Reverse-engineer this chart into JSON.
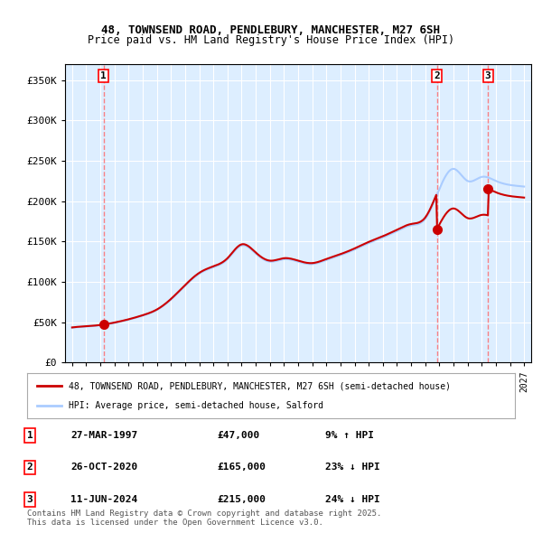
{
  "title_line1": "48, TOWNSEND ROAD, PENDLEBURY, MANCHESTER, M27 6SH",
  "title_line2": "Price paid vs. HM Land Registry's House Price Index (HPI)",
  "xlim": [
    1994.5,
    2027.5
  ],
  "ylim": [
    0,
    370000
  ],
  "yticks": [
    0,
    50000,
    100000,
    150000,
    200000,
    250000,
    300000,
    350000
  ],
  "ytick_labels": [
    "£0",
    "£50K",
    "£100K",
    "£150K",
    "£200K",
    "£250K",
    "£300K",
    "£350K"
  ],
  "background_color": "#ffffff",
  "plot_bg_color": "#ddeeff",
  "grid_color": "#ffffff",
  "hpi_color": "#aaccff",
  "price_color": "#cc0000",
  "sale_marker_color": "#cc0000",
  "dashed_line_color": "#ff6666",
  "legend_label_price": "48, TOWNSEND ROAD, PENDLEBURY, MANCHESTER, M27 6SH (semi-detached house)",
  "legend_label_hpi": "HPI: Average price, semi-detached house, Salford",
  "sale_points": [
    {
      "num": 1,
      "year": 1997.23,
      "price": 47000
    },
    {
      "num": 2,
      "year": 2020.82,
      "price": 165000
    },
    {
      "num": 3,
      "year": 2024.44,
      "price": 215000
    }
  ],
  "copyright_text": "Contains HM Land Registry data © Crown copyright and database right 2025.\nThis data is licensed under the Open Government Licence v3.0.",
  "table_rows": [
    {
      "num": 1,
      "date": "27-MAR-1997",
      "price": "£47,000",
      "hpi": "9% ↑ HPI"
    },
    {
      "num": 2,
      "date": "26-OCT-2020",
      "price": "£165,000",
      "hpi": "23% ↓ HPI"
    },
    {
      "num": 3,
      "date": "11-JUN-2024",
      "price": "£215,000",
      "hpi": "24% ↓ HPI"
    }
  ]
}
